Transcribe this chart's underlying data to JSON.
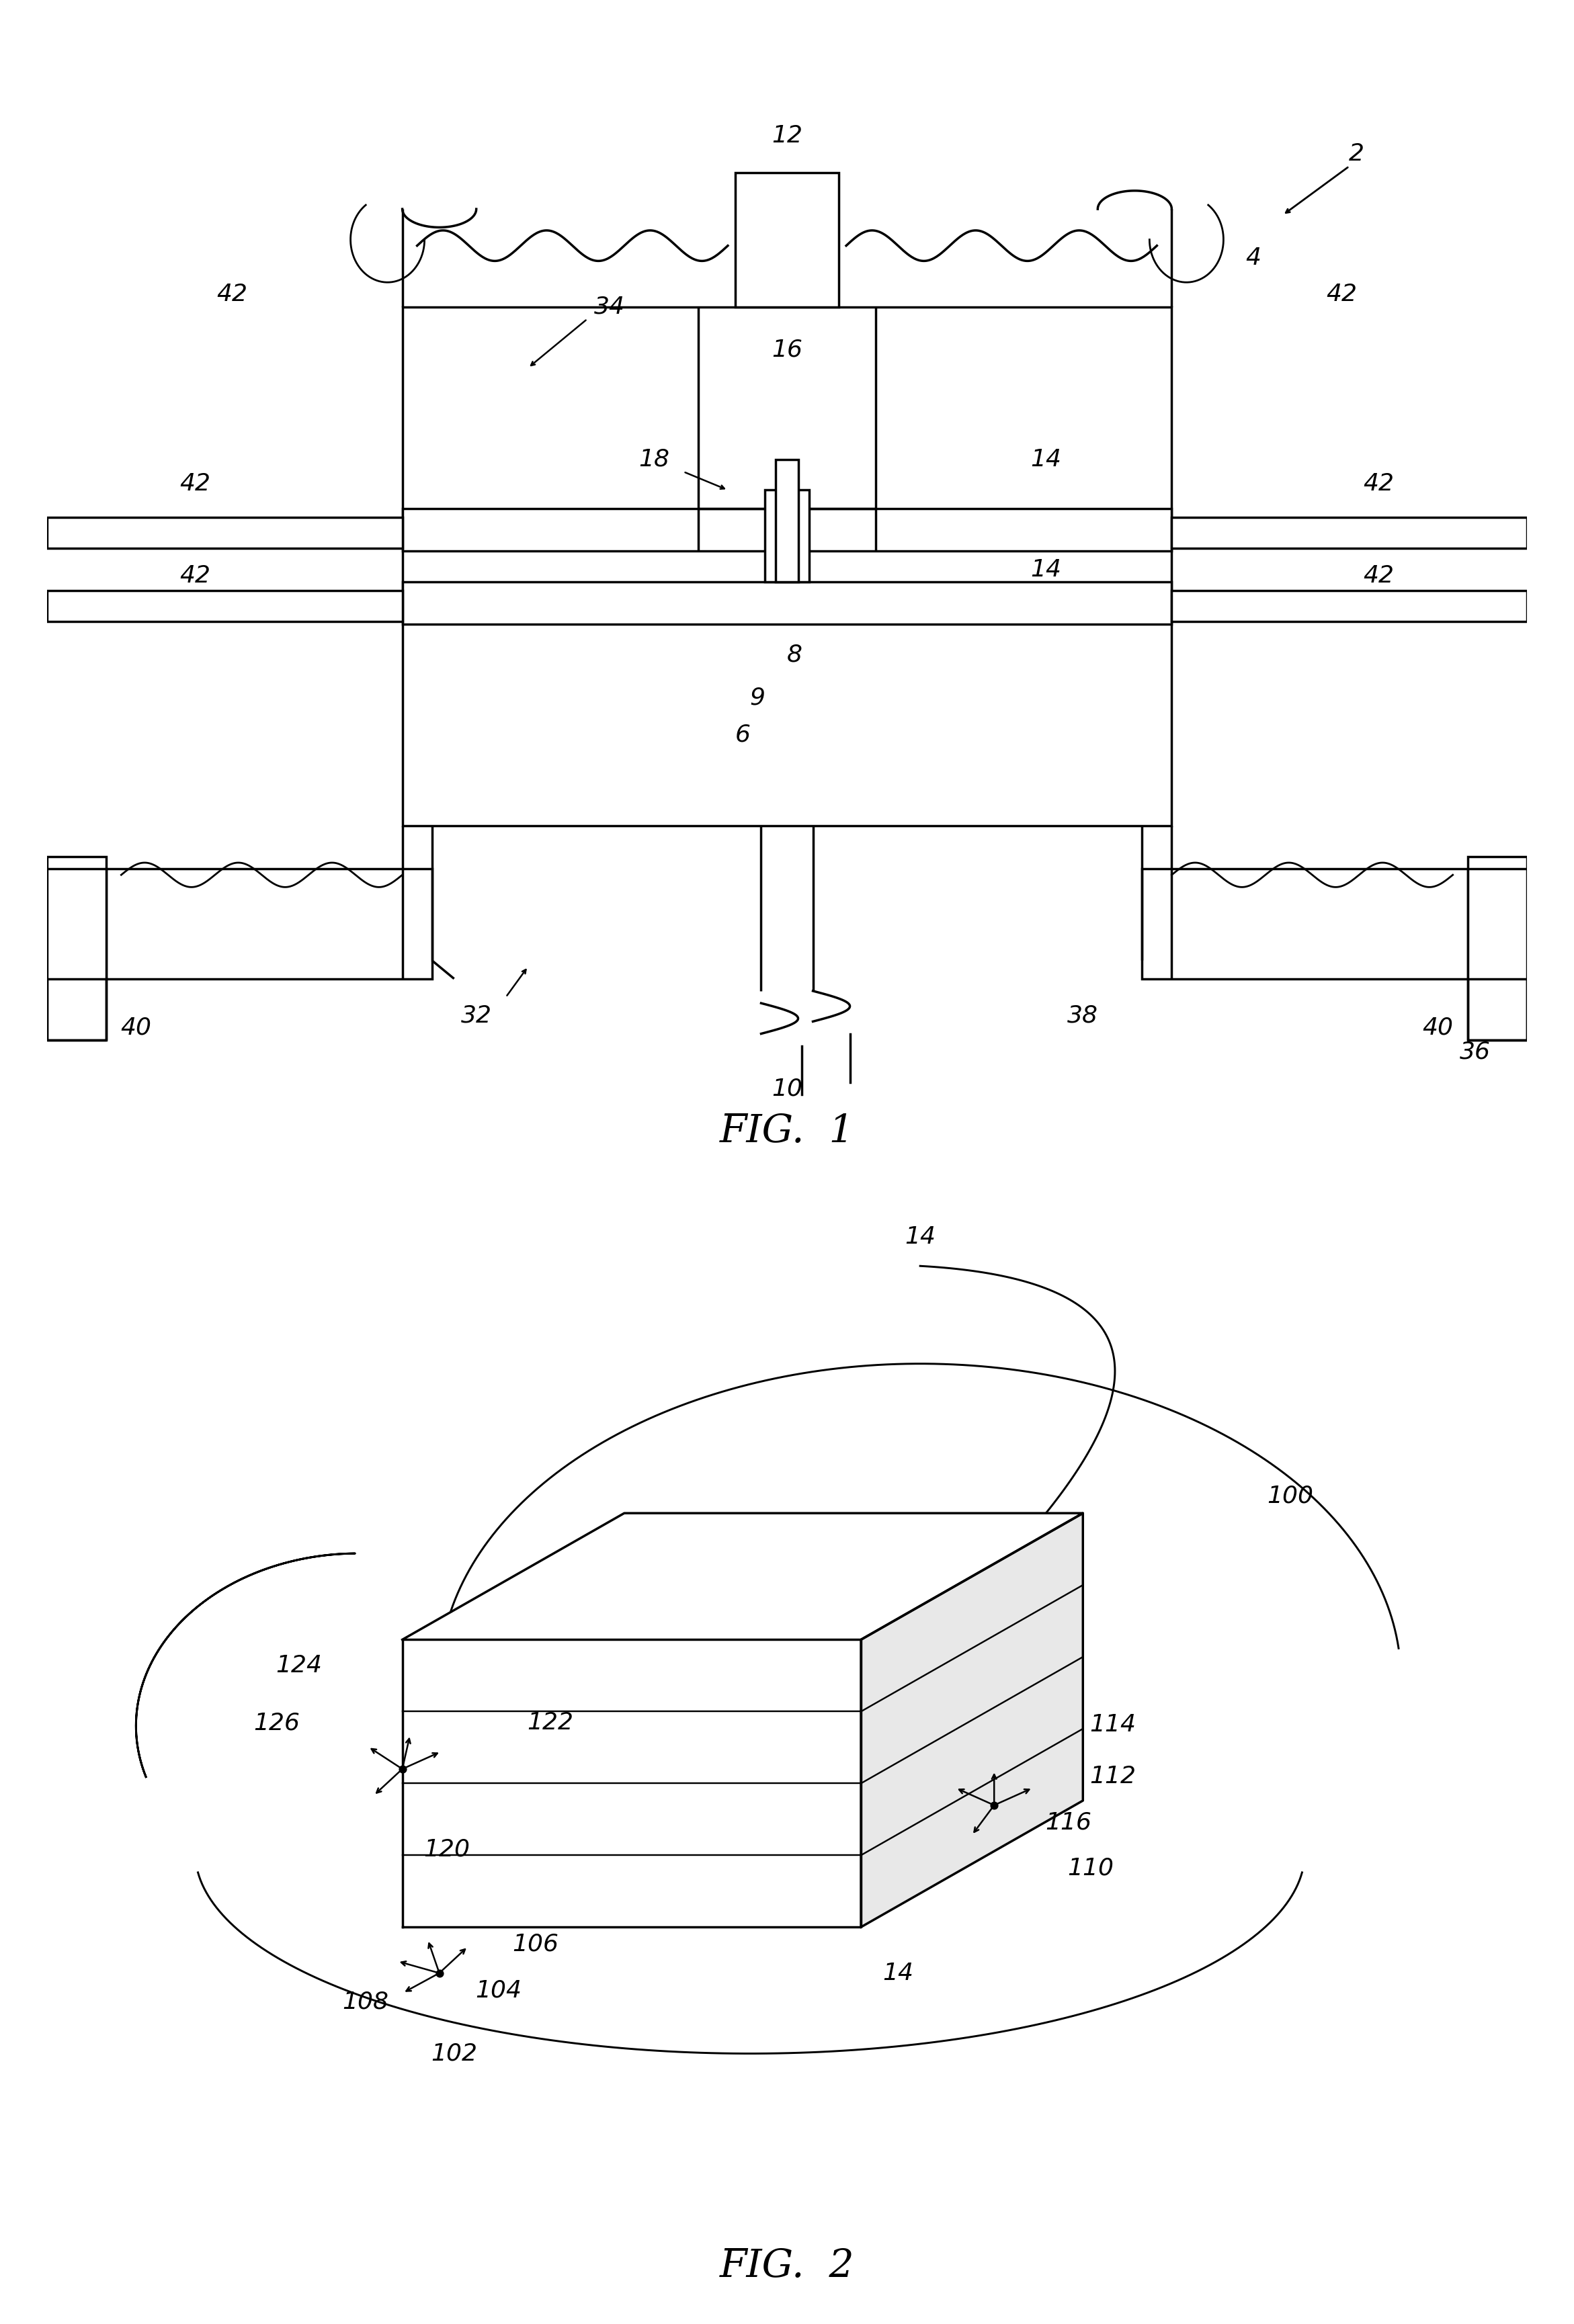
{
  "fig_width": 23.42,
  "fig_height": 34.59,
  "bg_color": "#ffffff",
  "line_color": "#000000",
  "lw": 2.5,
  "fig1_caption": "FIG.  1",
  "fig2_caption": "FIG.  2",
  "caption_fontsize": 42,
  "label_fontsize": 26
}
